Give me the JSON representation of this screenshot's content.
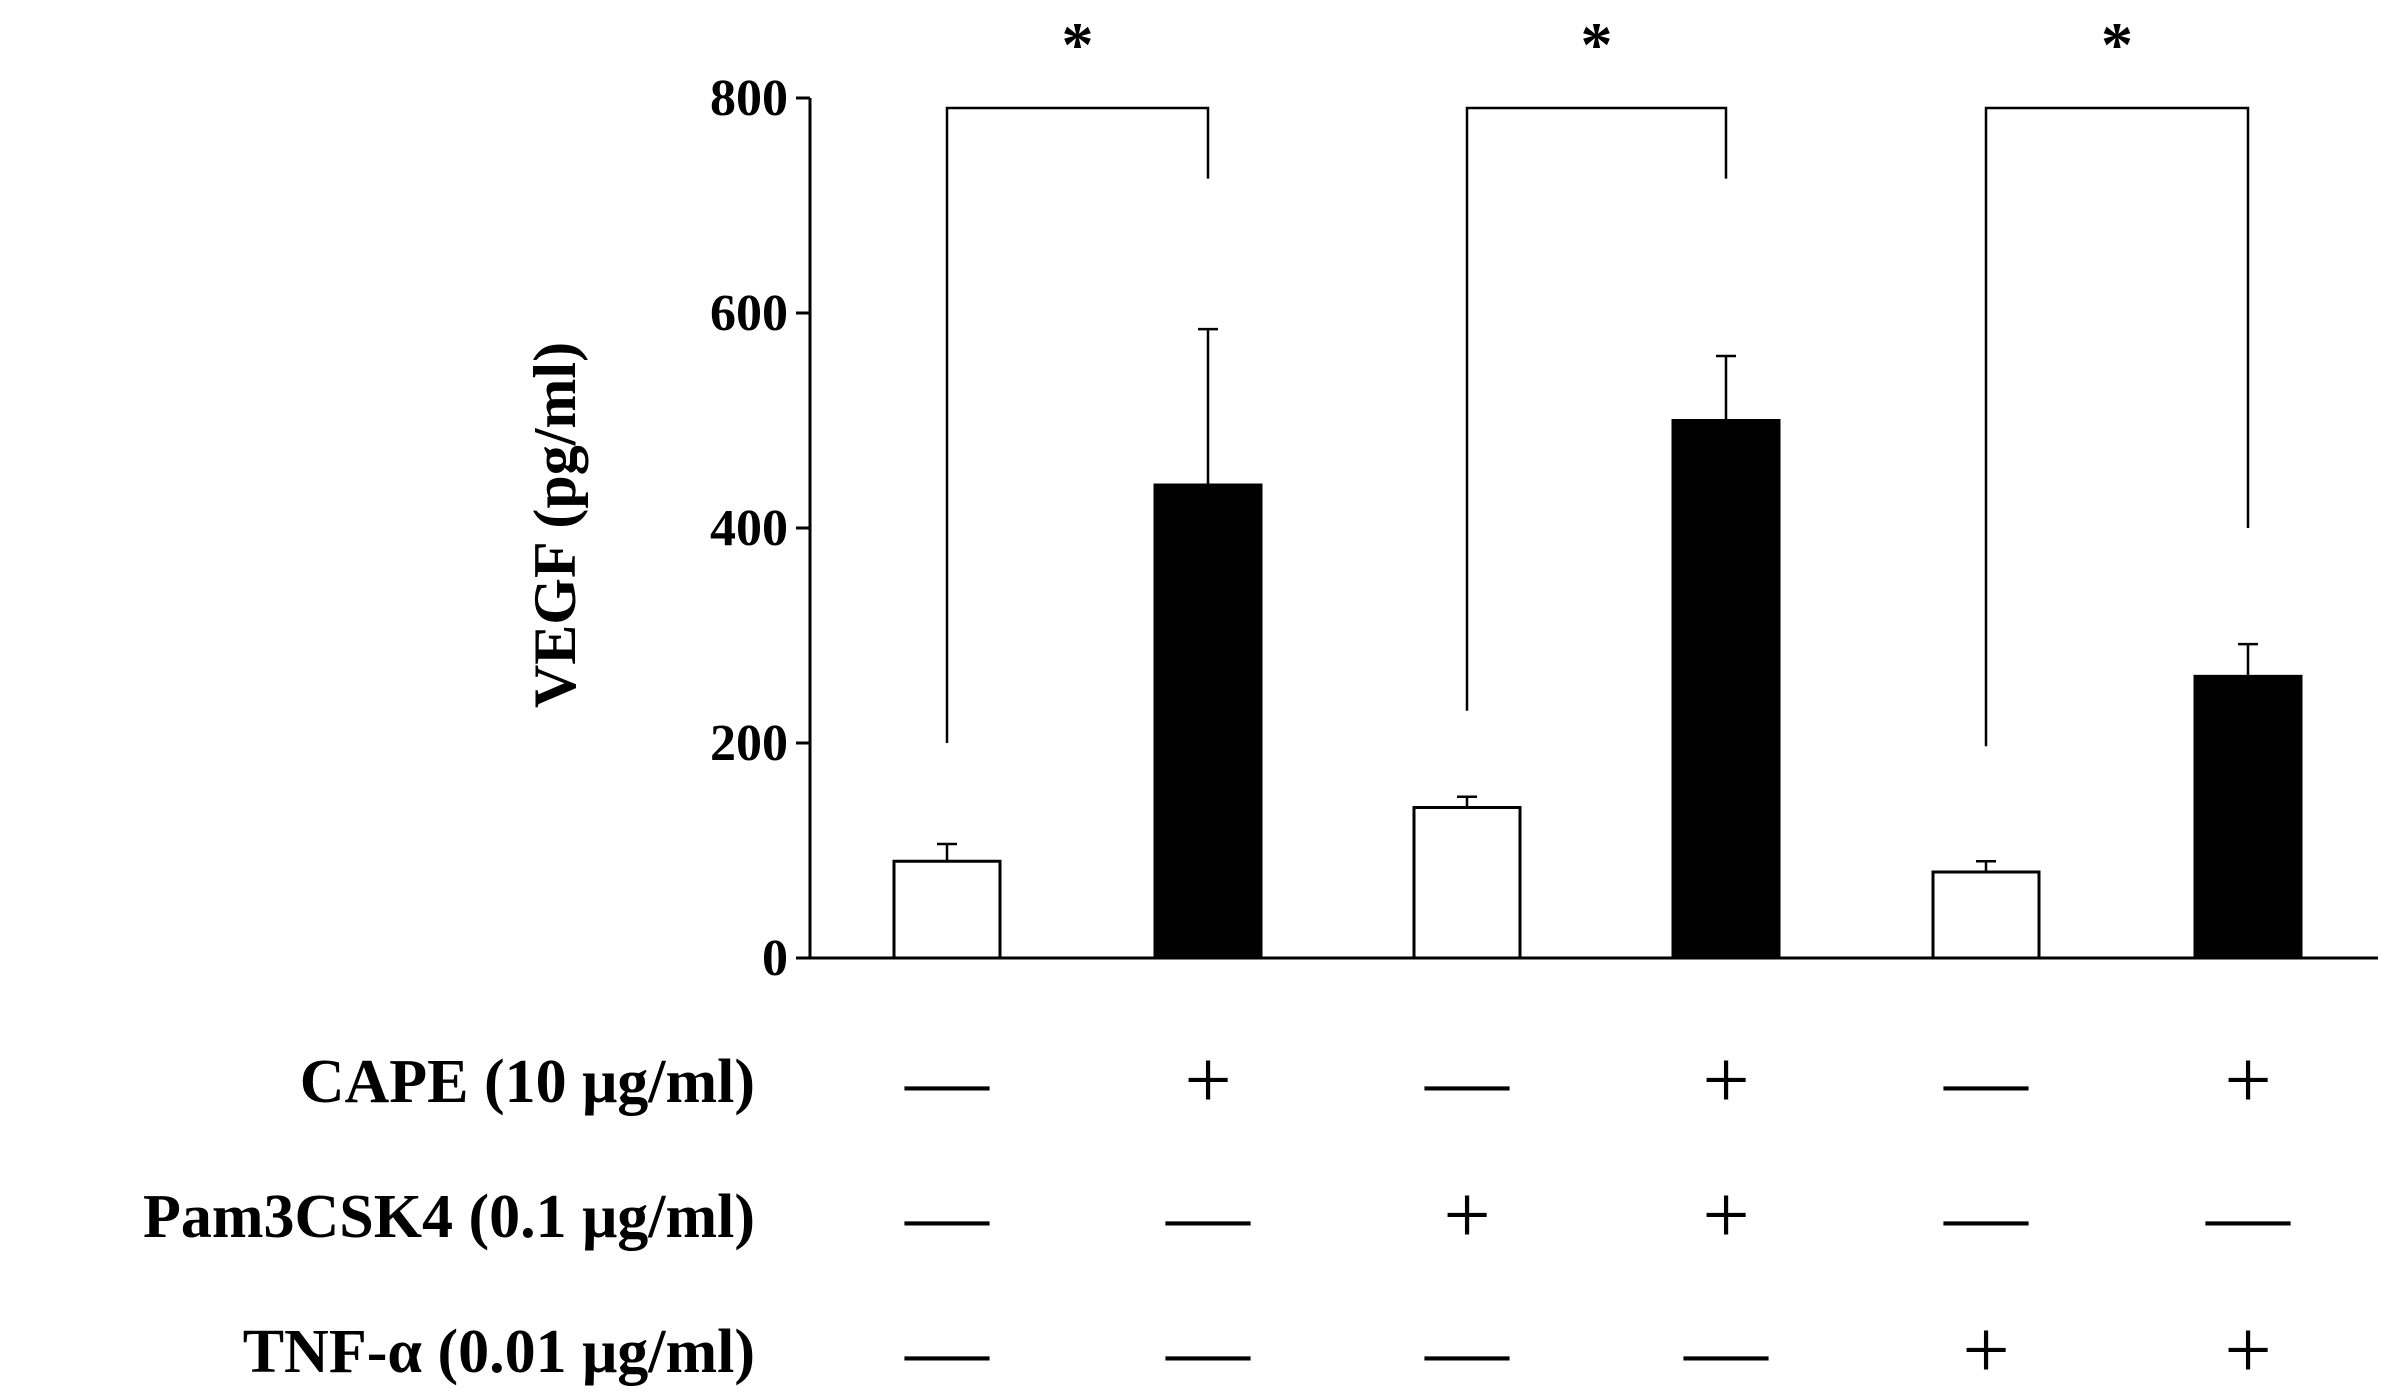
{
  "chart_data": {
    "type": "bar",
    "ylabel": "VEGF (pg/ml)",
    "ylim": [
      0,
      800
    ],
    "yticks": [
      0,
      200,
      400,
      600,
      800
    ],
    "bars": [
      {
        "value": 90,
        "error": 16,
        "fill": "#ffffff"
      },
      {
        "value": 440,
        "error": 145,
        "fill": "#000000"
      },
      {
        "value": 140,
        "error": 10,
        "fill": "#ffffff"
      },
      {
        "value": 500,
        "error": 60,
        "fill": "#000000"
      },
      {
        "value": 80,
        "error": 10,
        "fill": "#ffffff"
      },
      {
        "value": 262,
        "error": 30,
        "fill": "#000000"
      }
    ],
    "significance": [
      {
        "pair": [
          0,
          1
        ],
        "label": "*",
        "from_value": [
          200,
          725
        ]
      },
      {
        "pair": [
          2,
          3
        ],
        "label": "*",
        "from_value": [
          230,
          725
        ]
      },
      {
        "pair": [
          4,
          5
        ],
        "label": "*",
        "from_value": [
          197,
          400
        ]
      }
    ],
    "treatment_rows": [
      {
        "label": "CAPE (10 μg/ml)",
        "signs": [
          "—",
          "+",
          "—",
          "+",
          "—",
          "+"
        ]
      },
      {
        "label": "Pam3CSK4 (0.1 μg/ml)",
        "signs": [
          "—",
          "—",
          "+",
          "+",
          "—",
          "—"
        ]
      },
      {
        "label": "TNF-α (0.01 μg/ml)",
        "signs": [
          "—",
          "—",
          "—",
          "—",
          "+",
          "+"
        ]
      }
    ]
  }
}
